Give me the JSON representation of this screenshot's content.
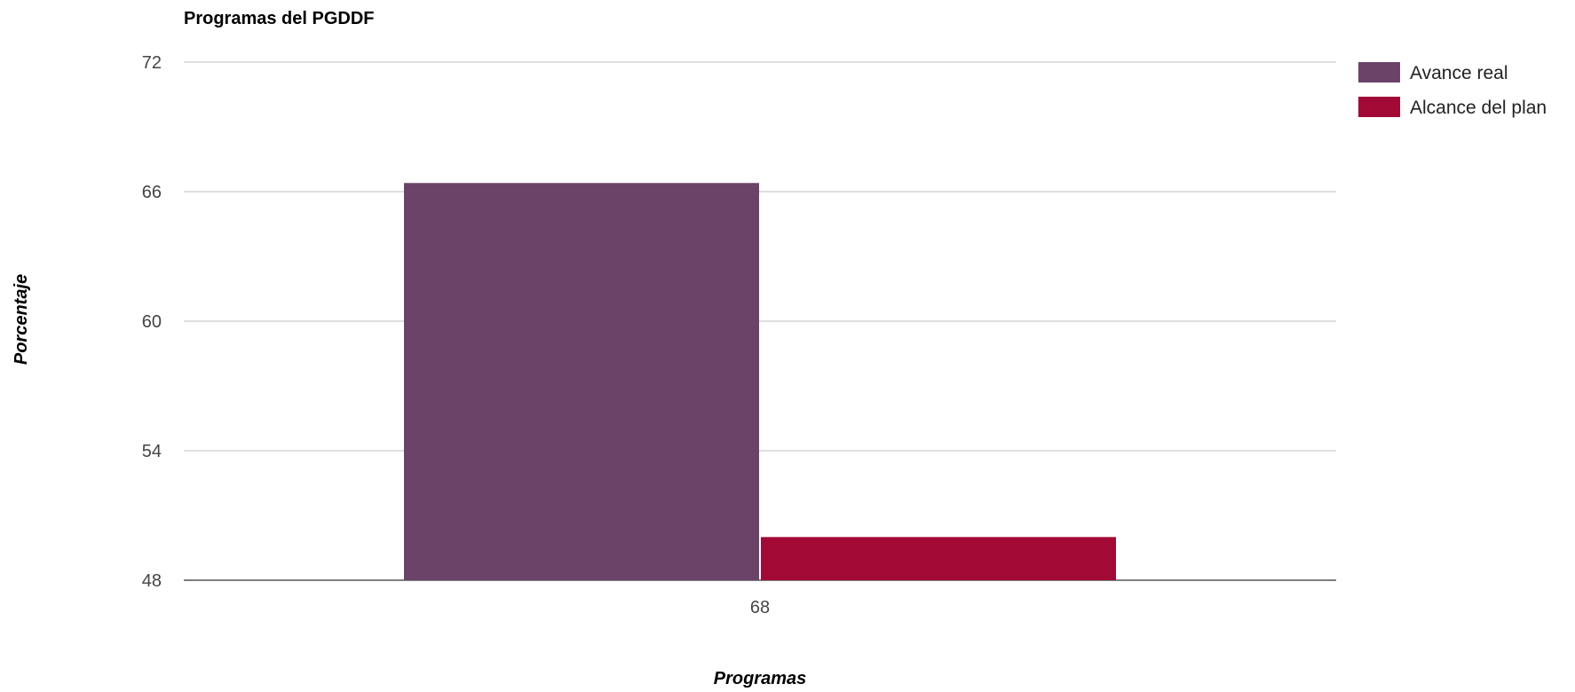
{
  "chart_data": {
    "type": "bar",
    "title": "Programas del PGDDF",
    "xlabel": "Programas",
    "ylabel": "Porcentaje",
    "categories": [
      "68"
    ],
    "series": [
      {
        "name": "Avance real",
        "values": [
          66.4
        ],
        "color": "#6b4369"
      },
      {
        "name": "Alcance del plan",
        "values": [
          50.0
        ],
        "color": "#a20a35"
      }
    ],
    "ylim": [
      48,
      72
    ],
    "yticks": [
      "48",
      "54",
      "60",
      "66",
      "72"
    ],
    "grid": true,
    "legend": "right"
  }
}
